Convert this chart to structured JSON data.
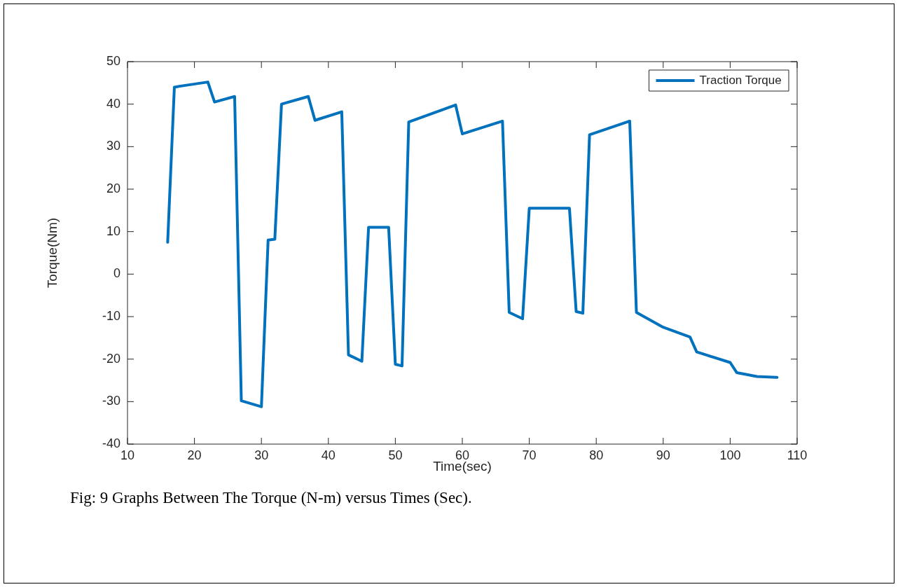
{
  "chart_data": {
    "type": "line",
    "xlabel": "Time(sec)",
    "ylabel": "Torque(Nm)",
    "x": [
      16,
      17,
      19,
      22,
      23,
      26,
      27,
      30,
      31,
      32,
      33,
      37,
      38,
      42,
      43,
      45,
      46,
      49,
      50,
      51,
      52,
      59,
      60,
      66,
      67,
      69,
      70,
      76,
      77,
      78,
      79,
      85,
      86,
      90,
      94,
      95,
      100,
      101,
      104,
      107
    ],
    "series": [
      {
        "name": "Traction Torque",
        "color": "#0072bd",
        "values": [
          7.5,
          44,
          44.5,
          45.2,
          40.5,
          41.8,
          -29.8,
          -31.2,
          8,
          8.2,
          40,
          41.8,
          36.2,
          38.2,
          -19,
          -20.5,
          11,
          11,
          -21.2,
          -21.6,
          35.8,
          39.8,
          33,
          36,
          -9,
          -10.5,
          15.5,
          15.5,
          -8.8,
          -9.2,
          32.8,
          36,
          -9,
          -12.5,
          -14.8,
          -18.3,
          -20.8,
          -23.2,
          -24.1,
          -24.3
        ]
      }
    ],
    "xlim": [
      10,
      110
    ],
    "xticks": [
      10,
      20,
      30,
      40,
      50,
      60,
      70,
      80,
      90,
      100,
      110
    ],
    "ylim": [
      -40,
      50
    ],
    "yticks": [
      -40,
      -30,
      -20,
      -10,
      0,
      10,
      20,
      30,
      40,
      50
    ],
    "legend": "top right",
    "grid": false,
    "marker": "none",
    "line_style": "solid",
    "annotations": [
      "Fig: 9 Graphs Between The Torque (N-m) versus Times (Sec)."
    ]
  }
}
